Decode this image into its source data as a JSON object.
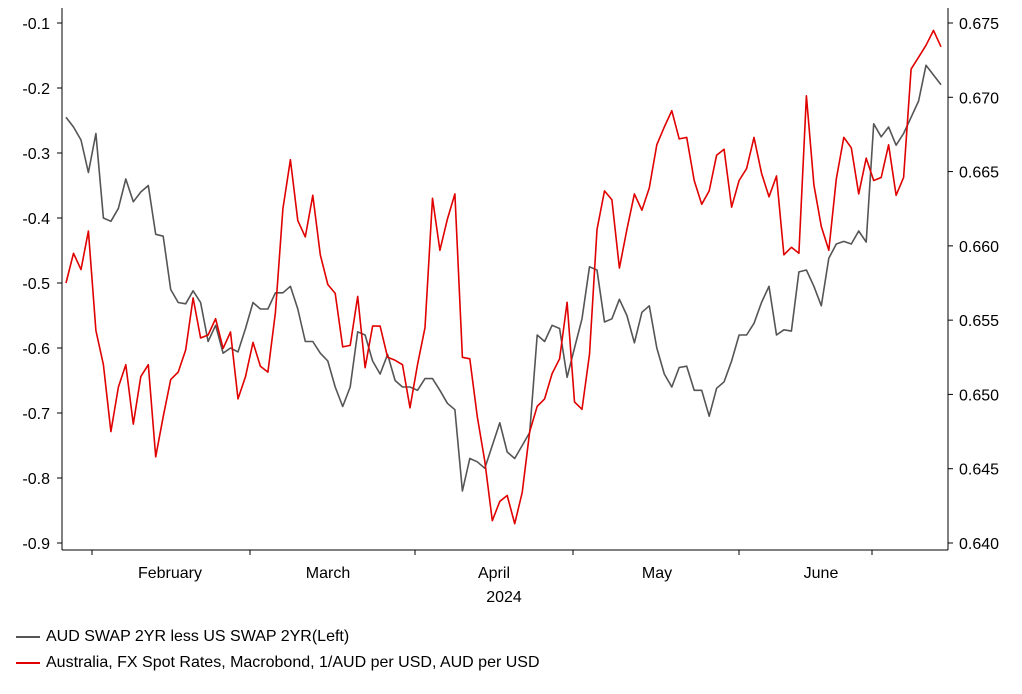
{
  "chart_data": {
    "type": "line",
    "xlabel": "2024",
    "x_tick_labels": [
      "February",
      "March",
      "April",
      "May",
      "June"
    ],
    "y_left": {
      "ticks": [
        "-0.1",
        "-0.2",
        "-0.3",
        "-0.4",
        "-0.5",
        "-0.6",
        "-0.7",
        "-0.8",
        "-0.9"
      ],
      "ylim": [
        -0.9,
        -0.1
      ]
    },
    "y_right": {
      "ticks": [
        "0.675",
        "0.670",
        "0.665",
        "0.660",
        "0.655",
        "0.650",
        "0.645",
        "0.640"
      ],
      "ylim": [
        0.64,
        0.675
      ]
    },
    "grid": false,
    "legend_position": "bottom-left",
    "series": [
      {
        "name": "AUD SWAP 2YR less US SWAP 2YR(Left)",
        "axis": "left",
        "color": "#555555",
        "values": [
          -0.245,
          -0.26,
          -0.28,
          -0.33,
          -0.27,
          -0.4,
          -0.405,
          -0.385,
          -0.34,
          -0.375,
          -0.36,
          -0.35,
          -0.425,
          -0.428,
          -0.51,
          -0.53,
          -0.532,
          -0.512,
          -0.53,
          -0.59,
          -0.565,
          -0.608,
          -0.6,
          -0.606,
          -0.57,
          -0.53,
          -0.54,
          -0.54,
          -0.515,
          -0.515,
          -0.505,
          -0.54,
          -0.59,
          -0.59,
          -0.608,
          -0.62,
          -0.66,
          -0.69,
          -0.66,
          -0.575,
          -0.58,
          -0.62,
          -0.64,
          -0.61,
          -0.65,
          -0.66,
          -0.66,
          -0.665,
          -0.647,
          -0.647,
          -0.665,
          -0.685,
          -0.695,
          -0.82,
          -0.77,
          -0.775,
          -0.785,
          -0.75,
          -0.715,
          -0.76,
          -0.77,
          -0.75,
          -0.73,
          -0.58,
          -0.59,
          -0.565,
          -0.57,
          -0.645,
          -0.6,
          -0.555,
          -0.475,
          -0.48,
          -0.56,
          -0.555,
          -0.525,
          -0.55,
          -0.592,
          -0.545,
          -0.535,
          -0.6,
          -0.64,
          -0.66,
          -0.63,
          -0.628,
          -0.665,
          -0.665,
          -0.705,
          -0.662,
          -0.652,
          -0.62,
          -0.58,
          -0.58,
          -0.562,
          -0.53,
          -0.505,
          -0.58,
          -0.572,
          -0.574,
          -0.483,
          -0.48,
          -0.505,
          -0.535,
          -0.462,
          -0.44,
          -0.436,
          -0.44,
          -0.42,
          -0.437,
          -0.255,
          -0.275,
          -0.26,
          -0.288,
          -0.27,
          -0.245,
          -0.22,
          -0.165,
          -0.18,
          -0.195
        ]
      },
      {
        "name": "Australia, FX Spot Rates, Macrobond, 1/AUD per USD, AUD per USD",
        "axis": "right",
        "color": "#e00000",
        "values": [
          0.6575,
          0.6595,
          0.6584,
          0.661,
          0.6543,
          0.652,
          0.6475,
          0.6505,
          0.652,
          0.648,
          0.6512,
          0.652,
          0.6458,
          0.6485,
          0.651,
          0.6515,
          0.653,
          0.6565,
          0.6538,
          0.654,
          0.6551,
          0.6531,
          0.6542,
          0.6497,
          0.6512,
          0.6535,
          0.6519,
          0.6515,
          0.6555,
          0.6625,
          0.6658,
          0.6617,
          0.6606,
          0.6634,
          0.6594,
          0.6574,
          0.6568,
          0.6532,
          0.6533,
          0.6566,
          0.6518,
          0.6546,
          0.6546,
          0.6525,
          0.6523,
          0.652,
          0.6491,
          0.652,
          0.6545,
          0.6632,
          0.6597,
          0.6618,
          0.6635,
          0.6525,
          0.6524,
          0.6485,
          0.6455,
          0.6415,
          0.6428,
          0.6432,
          0.6413,
          0.6434,
          0.6475,
          0.6492,
          0.6497,
          0.6514,
          0.6524,
          0.6562,
          0.6495,
          0.649,
          0.6527,
          0.6611,
          0.6637,
          0.6631,
          0.6585,
          0.6611,
          0.6635,
          0.6624,
          0.6639,
          0.6668,
          0.668,
          0.6691,
          0.6672,
          0.6673,
          0.6644,
          0.6628,
          0.6637,
          0.6661,
          0.6665,
          0.6626,
          0.6644,
          0.6652,
          0.6673,
          0.6649,
          0.6633,
          0.6647,
          0.6594,
          0.6599,
          0.6595,
          0.6701,
          0.6641,
          0.6613,
          0.6597,
          0.6645,
          0.6673,
          0.6666,
          0.6635,
          0.6659,
          0.6644,
          0.6646,
          0.6668,
          0.6634,
          0.6646,
          0.6719,
          0.6727,
          0.6735,
          0.6745,
          0.6734
        ]
      }
    ]
  }
}
